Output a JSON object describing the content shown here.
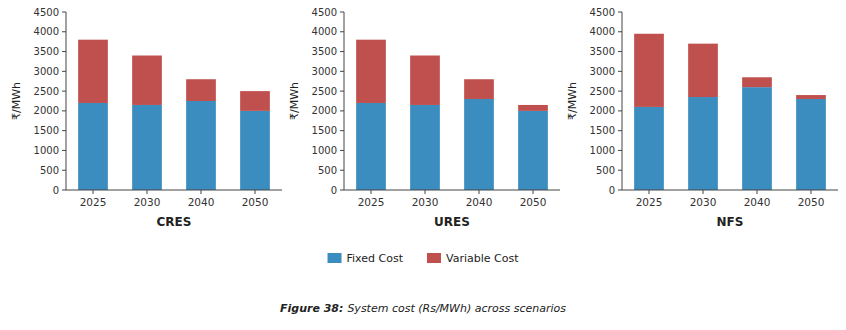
{
  "chart_data": [
    {
      "type": "bar",
      "stacked": true,
      "grid": false,
      "legend": "bottom",
      "x_label": "CRES",
      "y_label": "₹/MWh",
      "categories": [
        "2025",
        "2030",
        "2040",
        "2050"
      ],
      "series": [
        {
          "name": "Fixed Cost",
          "color": "#3B8DC0",
          "values": [
            2200,
            2150,
            2250,
            2000
          ]
        },
        {
          "name": "Variable Cost",
          "color": "#C0504D",
          "values": [
            1600,
            1250,
            550,
            500
          ]
        }
      ],
      "ylim": [
        0,
        4500
      ],
      "yticks": [
        0,
        500,
        1000,
        1500,
        2000,
        2500,
        3000,
        3500,
        4000,
        4500
      ],
      "annotations": [
        "Figure 38:",
        "System cost (Rs/MWh) across scenarios"
      ]
    },
    {
      "type": "bar",
      "stacked": true,
      "grid": false,
      "x_label": "URES",
      "y_label": "₹/MWh",
      "categories": [
        "2025",
        "2030",
        "2040",
        "2050"
      ],
      "series": [
        {
          "name": "Fixed Cost",
          "color": "#3B8DC0",
          "values": [
            2200,
            2150,
            2300,
            2000
          ]
        },
        {
          "name": "Variable Cost",
          "color": "#C0504D",
          "values": [
            1600,
            1250,
            500,
            150
          ]
        }
      ],
      "ylim": [
        0,
        4500
      ],
      "yticks": [
        0,
        500,
        1000,
        1500,
        2000,
        2500,
        3000,
        3500,
        4000,
        4500
      ]
    },
    {
      "type": "bar",
      "stacked": true,
      "grid": false,
      "x_label": "NFS",
      "y_label": "₹/MWh",
      "categories": [
        "2025",
        "2030",
        "2040",
        "2050"
      ],
      "series": [
        {
          "name": "Fixed Cost",
          "color": "#3B8DC0",
          "values": [
            2100,
            2350,
            2600,
            2300
          ]
        },
        {
          "name": "Variable Cost",
          "color": "#C0504D",
          "values": [
            1850,
            1350,
            250,
            100
          ]
        }
      ],
      "ylim": [
        0,
        4500
      ],
      "yticks": [
        0,
        500,
        1000,
        1500,
        2000,
        2500,
        3000,
        3500,
        4000,
        4500
      ]
    }
  ]
}
